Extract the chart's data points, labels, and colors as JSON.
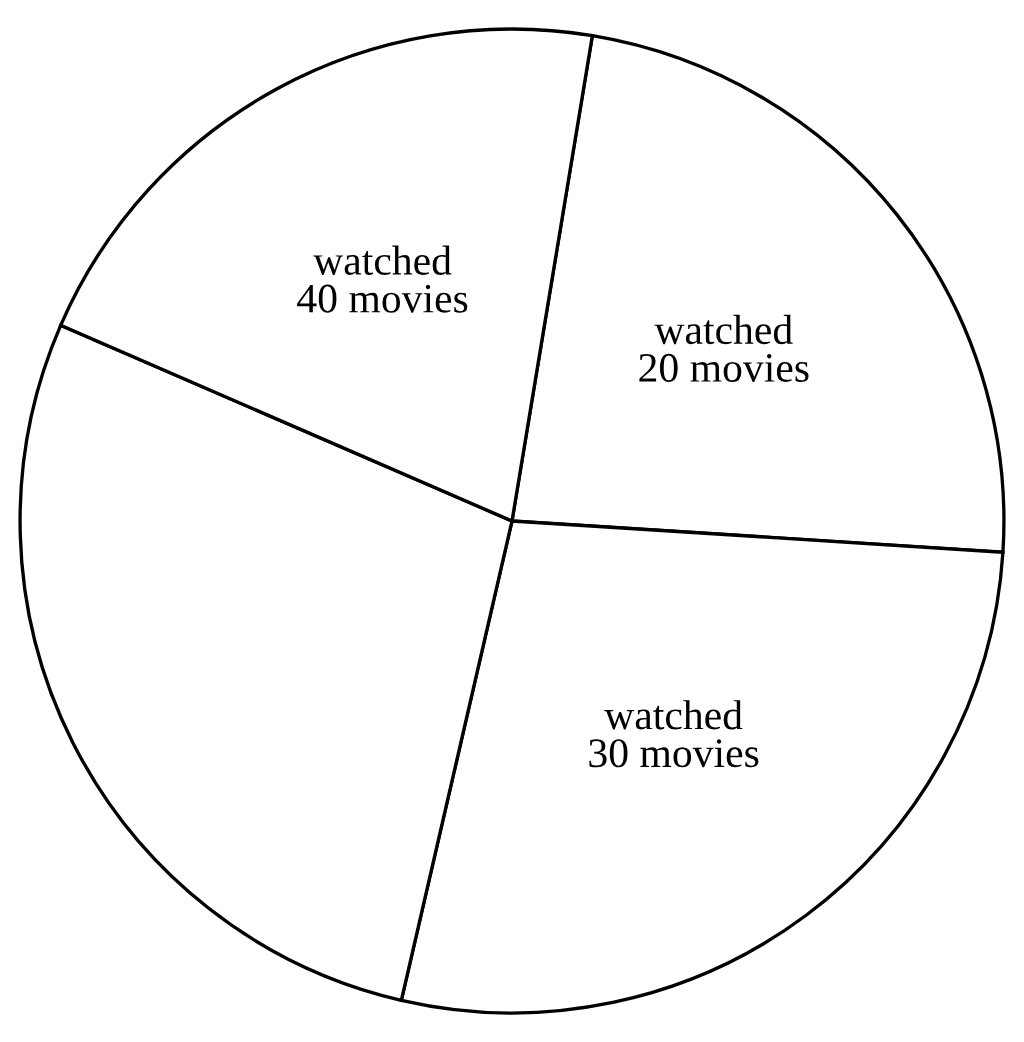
{
  "chart_data": {
    "type": "pie",
    "categories": [
      "watched\n20 movies",
      "watched\n30 movies",
      null,
      "watched\n40 movies"
    ],
    "values": [
      23.4,
      27.6,
      27.9,
      21.1
    ],
    "colors": [
      "#ffffff",
      "#ffffff",
      "#ffffff",
      "#ffffff"
    ]
  }
}
